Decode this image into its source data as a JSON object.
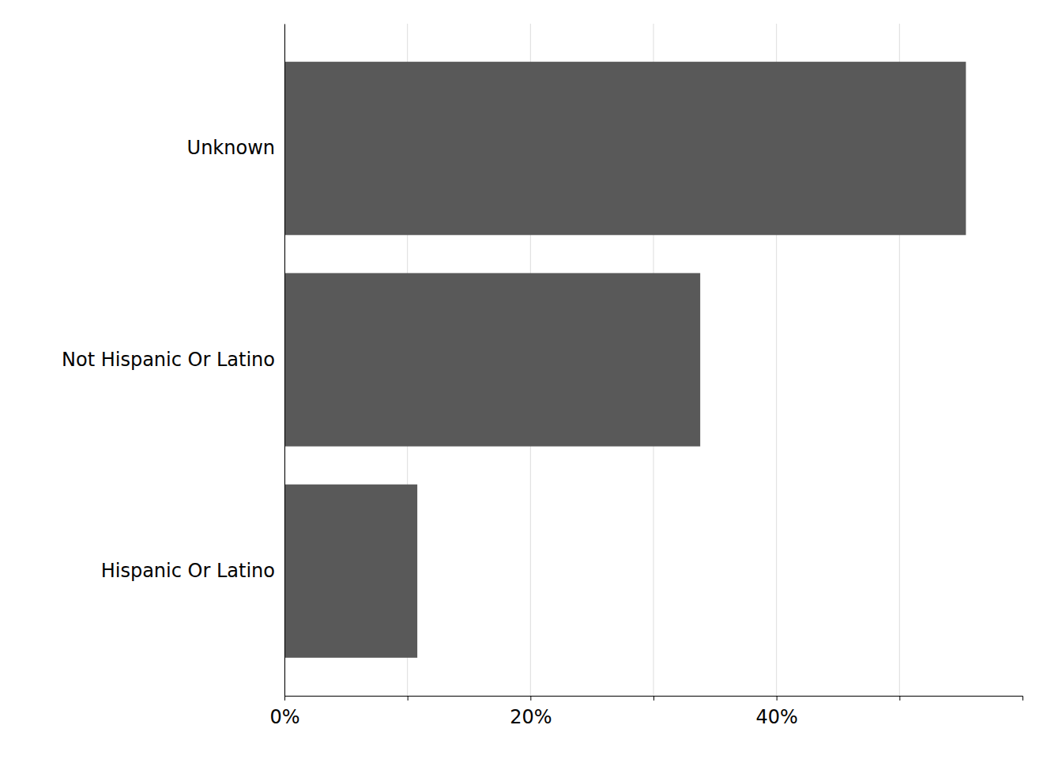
{
  "chart_data": {
    "type": "bar",
    "orientation": "horizontal",
    "categories": [
      "Hispanic Or Latino",
      "Not Hispanic Or Latino",
      "Unknown"
    ],
    "values": [
      0.108,
      0.338,
      0.554
    ],
    "color": "#595959",
    "xlim": [
      0,
      0.6
    ],
    "xticks": [
      {
        "value": 0.0,
        "label": "0%"
      },
      {
        "value": 0.1,
        "label": null
      },
      {
        "value": 0.2,
        "label": "20%"
      },
      {
        "value": 0.3,
        "label": null
      },
      {
        "value": 0.4,
        "label": "40%"
      },
      {
        "value": 0.5,
        "label": null
      }
    ],
    "grid": true
  }
}
